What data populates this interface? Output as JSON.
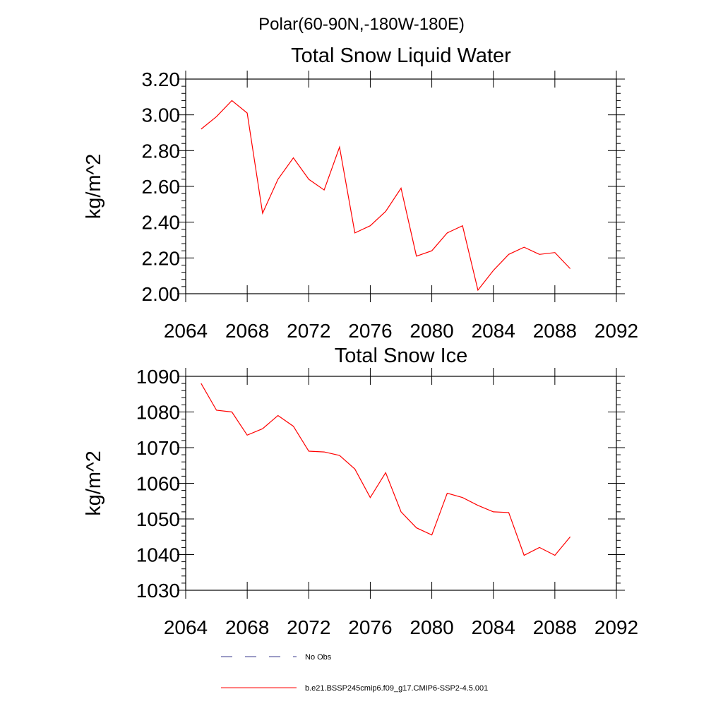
{
  "figure_title": "Polar(60-90N,-180W-180E)",
  "legend": [
    {
      "label": "No Obs",
      "style": "dashed",
      "color": "#3a3a8c"
    },
    {
      "label": "b.e21.BSSP245cmip6.f09_g17.CMIP6-SSP2-4.5.001",
      "style": "solid",
      "color": "#ff0000"
    }
  ],
  "chart_data": [
    {
      "type": "line",
      "title": "Total Snow Liquid Water",
      "xlabel": "",
      "ylabel": "kg/m^2",
      "xlim": [
        2064,
        2092
      ],
      "ylim": [
        2.0,
        3.2
      ],
      "xticks": [
        2064,
        2068,
        2072,
        2076,
        2080,
        2084,
        2088,
        2092
      ],
      "xtick_labels": [
        "2064",
        "2068",
        "2072",
        "2076",
        "2080",
        "2084",
        "2088",
        "2092"
      ],
      "yticks": [
        2.0,
        2.2,
        2.4,
        2.6,
        2.8,
        3.0,
        3.2
      ],
      "ytick_labels": [
        "2.00",
        "2.20",
        "2.40",
        "2.60",
        "2.80",
        "3.00",
        "3.20"
      ],
      "grid": false,
      "series": [
        {
          "name": "b.e21.BSSP245cmip6.f09_g17.CMIP6-SSP2-4.5.001",
          "color": "#ff0000",
          "x": [
            2065,
            2066,
            2067,
            2068,
            2069,
            2070,
            2071,
            2072,
            2073,
            2074,
            2075,
            2076,
            2077,
            2078,
            2079,
            2080,
            2081,
            2082,
            2083,
            2084,
            2085,
            2086,
            2087,
            2088,
            2089
          ],
          "y": [
            2.92,
            2.99,
            3.08,
            3.01,
            2.45,
            2.64,
            2.76,
            2.64,
            2.58,
            2.82,
            2.34,
            2.38,
            2.46,
            2.59,
            2.21,
            2.24,
            2.34,
            2.38,
            2.02,
            2.13,
            2.22,
            2.26,
            2.22,
            2.23,
            2.14
          ]
        }
      ]
    },
    {
      "type": "line",
      "title": "Total Snow Ice",
      "xlabel": "",
      "ylabel": "kg/m^2",
      "xlim": [
        2064,
        2092
      ],
      "ylim": [
        1030,
        1090
      ],
      "xticks": [
        2064,
        2068,
        2072,
        2076,
        2080,
        2084,
        2088,
        2092
      ],
      "xtick_labels": [
        "2064",
        "2068",
        "2072",
        "2076",
        "2080",
        "2084",
        "2088",
        "2092"
      ],
      "yticks": [
        1030,
        1040,
        1050,
        1060,
        1070,
        1080,
        1090
      ],
      "ytick_labels": [
        "1030",
        "1040",
        "1050",
        "1060",
        "1070",
        "1080",
        "1090"
      ],
      "grid": false,
      "series": [
        {
          "name": "b.e21.BSSP245cmip6.f09_g17.CMIP6-SSP2-4.5.001",
          "color": "#ff0000",
          "x": [
            2065,
            2066,
            2067,
            2068,
            2069,
            2070,
            2071,
            2072,
            2073,
            2074,
            2075,
            2076,
            2077,
            2078,
            2079,
            2080,
            2081,
            2082,
            2083,
            2084,
            2085,
            2086,
            2087,
            2088,
            2089
          ],
          "y": [
            1088.0,
            1080.5,
            1080.0,
            1073.5,
            1075.3,
            1079.0,
            1076.0,
            1069.0,
            1068.8,
            1067.8,
            1064.0,
            1056.0,
            1063.0,
            1052.0,
            1047.5,
            1045.5,
            1057.2,
            1056.0,
            1053.8,
            1052.0,
            1051.8,
            1039.8,
            1042.0,
            1039.8,
            1045.0
          ]
        }
      ]
    }
  ]
}
